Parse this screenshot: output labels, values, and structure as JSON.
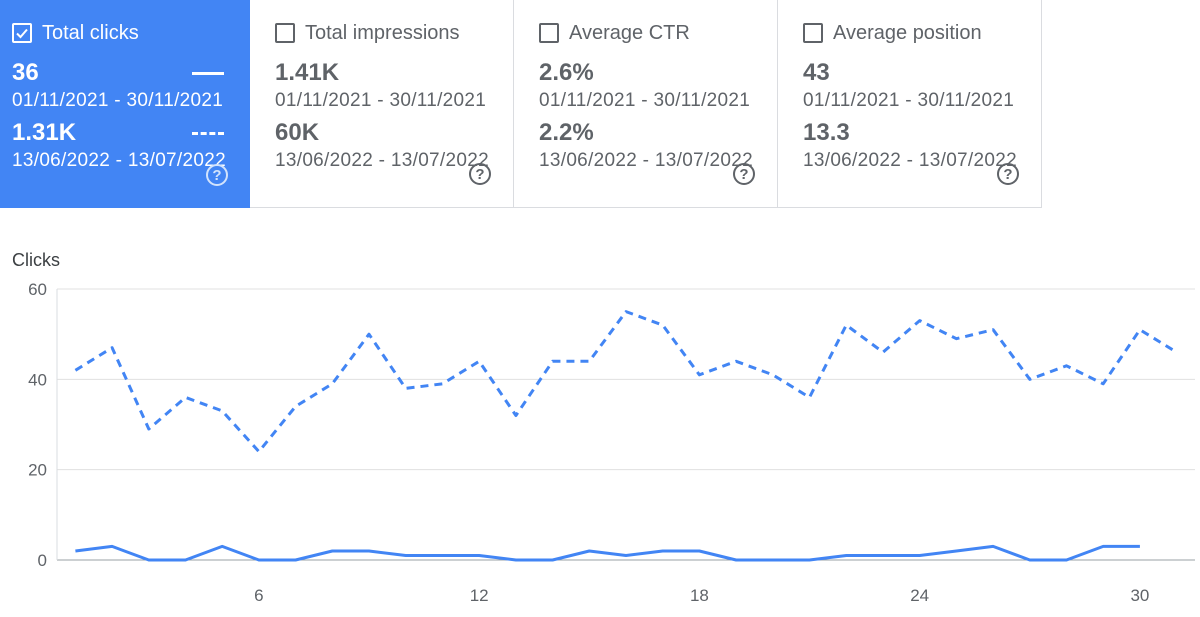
{
  "metrics": [
    {
      "label": "Total clicks",
      "checked": true,
      "value1": "36",
      "range1": "01/11/2021 - 30/11/2021",
      "value2": "1.31K",
      "range2": "13/06/2022 - 13/07/2022",
      "help": "?"
    },
    {
      "label": "Total impressions",
      "checked": false,
      "value1": "1.41K",
      "range1": "01/11/2021 - 30/11/2021",
      "value2": "60K",
      "range2": "13/06/2022 - 13/07/2022",
      "help": "?"
    },
    {
      "label": "Average CTR",
      "checked": false,
      "value1": "2.6%",
      "range1": "01/11/2021 - 30/11/2021",
      "value2": "2.2%",
      "range2": "13/06/2022 - 13/07/2022",
      "help": "?"
    },
    {
      "label": "Average position",
      "checked": false,
      "value1": "43",
      "range1": "01/11/2021 - 30/11/2021",
      "value2": "13.3",
      "range2": "13/06/2022 - 13/07/2022",
      "help": "?"
    }
  ],
  "colors": {
    "accent": "#4285f4",
    "grid": "#e0e0e0",
    "text": "#5f6368"
  },
  "chart_data": {
    "type": "line",
    "ylabel": "Clicks",
    "ylim": [
      0,
      60
    ],
    "yticks": [
      0,
      20,
      40,
      60
    ],
    "xticks": [
      6,
      12,
      18,
      24,
      30
    ],
    "xlim": [
      0.5,
      31.5
    ],
    "grid": true,
    "series": [
      {
        "style": "solid",
        "x": [
          1,
          2,
          3,
          4,
          5,
          6,
          7,
          8,
          9,
          10,
          11,
          12,
          13,
          14,
          15,
          16,
          17,
          18,
          19,
          20,
          21,
          22,
          23,
          24,
          25,
          26,
          27,
          28,
          29,
          30
        ],
        "values": [
          2,
          3,
          0,
          0,
          3,
          0,
          0,
          2,
          2,
          1,
          1,
          1,
          0,
          0,
          2,
          1,
          2,
          2,
          0,
          0,
          0,
          1,
          1,
          1,
          2,
          3,
          0,
          0,
          3,
          3
        ]
      },
      {
        "style": "dashed",
        "x": [
          1,
          2,
          3,
          4,
          5,
          6,
          7,
          8,
          9,
          10,
          11,
          12,
          13,
          14,
          15,
          16,
          17,
          18,
          19,
          20,
          21,
          22,
          23,
          24,
          25,
          26,
          27,
          28,
          29,
          30,
          31
        ],
        "values": [
          42,
          47,
          29,
          36,
          33,
          24,
          34,
          39,
          50,
          38,
          39,
          44,
          32,
          44,
          44,
          55,
          52,
          41,
          44,
          41,
          36,
          52,
          46,
          53,
          49,
          51,
          40,
          43,
          39,
          51,
          46
        ]
      }
    ]
  }
}
